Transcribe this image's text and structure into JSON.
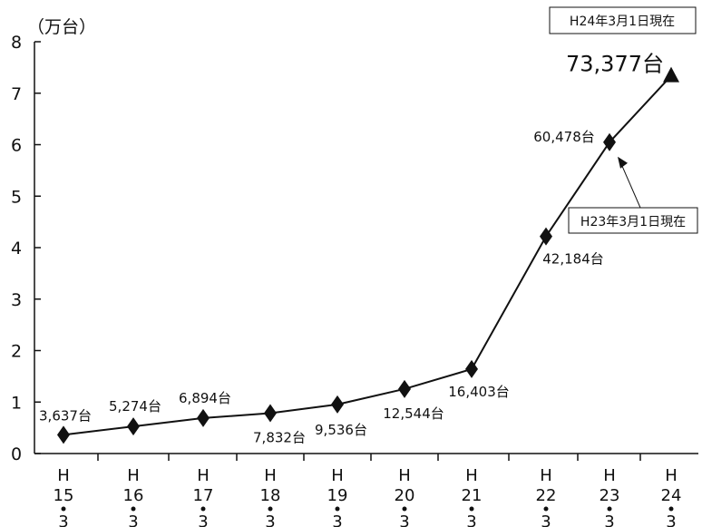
{
  "chart_data": {
    "type": "line",
    "unit_label": "（万台）",
    "date_note": "H24年3月1日現在",
    "annotation": "H23年3月1日現在",
    "annotation_target_index": 8,
    "ylim": [
      0,
      8
    ],
    "yticks": [
      "0",
      "1",
      "2",
      "3",
      "4",
      "5",
      "6",
      "7",
      "8"
    ],
    "categories": [
      {
        "era": "H",
        "year": "15",
        "month": "3"
      },
      {
        "era": "H",
        "year": "16",
        "month": "3"
      },
      {
        "era": "H",
        "year": "17",
        "month": "3"
      },
      {
        "era": "H",
        "year": "18",
        "month": "3"
      },
      {
        "era": "H",
        "year": "19",
        "month": "3"
      },
      {
        "era": "H",
        "year": "20",
        "month": "3"
      },
      {
        "era": "H",
        "year": "21",
        "month": "3"
      },
      {
        "era": "H",
        "year": "22",
        "month": "3"
      },
      {
        "era": "H",
        "year": "23",
        "month": "3"
      },
      {
        "era": "H",
        "year": "24",
        "month": "3"
      }
    ],
    "values": [
      0.3637,
      0.5274,
      0.6894,
      0.7832,
      0.9536,
      1.2544,
      1.6403,
      4.2184,
      6.0478,
      7.3377
    ],
    "data_labels": [
      "3,637台",
      "5,274台",
      "6,894台",
      "7,832台",
      "9,536台",
      "12,544台",
      "16,403台",
      "42,184台",
      "60,478台",
      "73,377台"
    ],
    "markers": [
      "diamond",
      "diamond",
      "diamond",
      "diamond",
      "diamond",
      "diamond",
      "diamond",
      "diamond",
      "diamond",
      "triangle"
    ]
  }
}
